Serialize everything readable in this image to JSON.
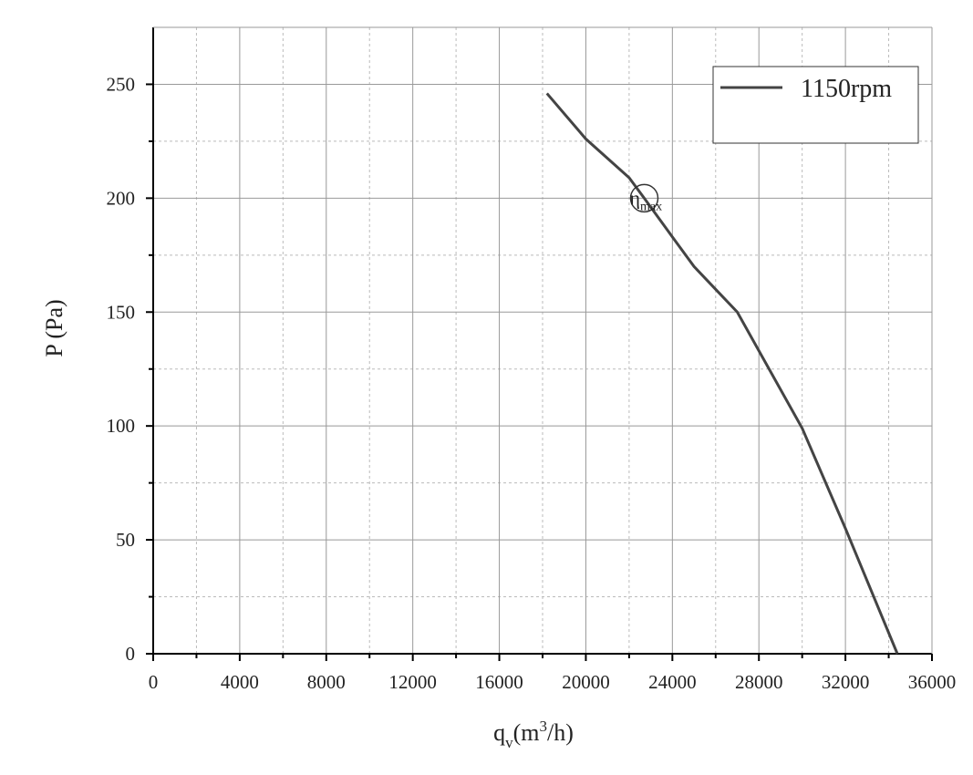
{
  "chart_data": {
    "type": "line",
    "x_label": {
      "main": "q",
      "sub": "v",
      "rest": "(m",
      "sup": "3",
      "end": "/h)"
    },
    "y_label": "P (Pa)",
    "series": [
      {
        "name": "1150rpm",
        "color": "#444444",
        "x": [
          18200,
          20000,
          22000,
          22700,
          24000,
          25000,
          26000,
          27000,
          28000,
          30000,
          32000,
          34400
        ],
        "values": [
          246,
          226,
          209,
          200,
          183,
          170,
          160,
          150,
          133,
          99,
          55,
          0
        ]
      }
    ],
    "annotation": {
      "text": "η",
      "sub": "max",
      "x": 22700,
      "y": 200
    },
    "xlim": [
      0,
      36000
    ],
    "ylim": [
      0,
      275
    ],
    "xticks": [
      0,
      4000,
      8000,
      12000,
      16000,
      20000,
      24000,
      28000,
      32000,
      36000
    ],
    "yticks": [
      0,
      50,
      100,
      150,
      200,
      250
    ],
    "xminorticks": [
      2000,
      6000,
      10000,
      14000,
      18000,
      22000,
      26000,
      30000,
      34000
    ],
    "yminorticks": [
      25,
      75,
      125,
      175,
      225
    ],
    "grid": true,
    "legend": "top-right"
  }
}
